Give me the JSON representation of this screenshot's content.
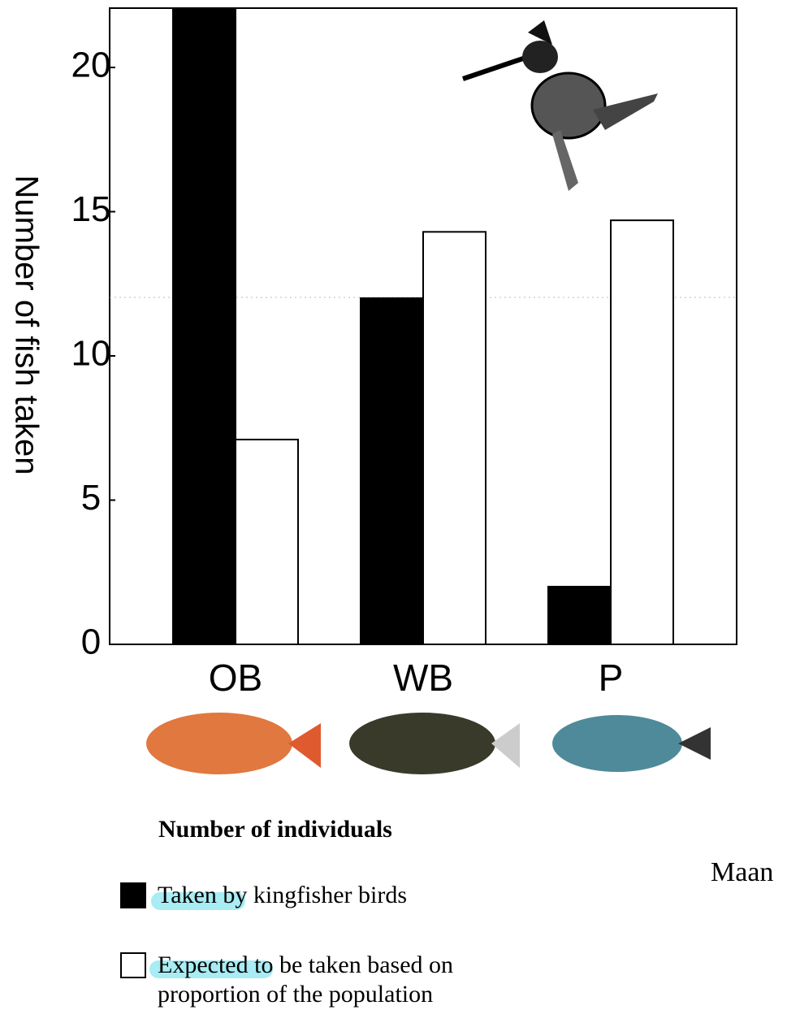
{
  "chart_data": {
    "type": "bar",
    "y_label": "Number of fish taken",
    "categories": [
      "OB",
      "WB",
      "P"
    ],
    "series": [
      {
        "name": "Taken by kingfisher birds",
        "color": "#000000",
        "values": [
          22,
          12,
          2
        ]
      },
      {
        "name": "Expected to be taken based on proportion of the population",
        "color": "#ffffff",
        "values": [
          7.1,
          14.3,
          14.7
        ]
      }
    ],
    "ylim": [
      0,
      22
    ],
    "yticks": [
      0,
      5,
      10,
      15,
      20
    ],
    "legend_title": "Number of individuals",
    "annotation": "Maan"
  }
}
